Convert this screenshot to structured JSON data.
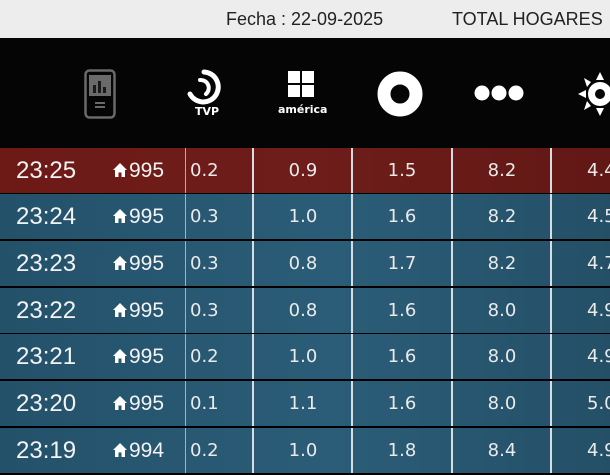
{
  "top_bar": {
    "date_label": "Fecha : 22-09-2025",
    "title": "TOTAL HOGARES"
  },
  "channels": [
    {
      "icon": "device-chart-icon"
    },
    {
      "icon": "tvp-logo-icon",
      "label": "TVP"
    },
    {
      "icon": "america-logo-icon",
      "label": "américa"
    },
    {
      "icon": "circle-ring-logo-icon"
    },
    {
      "icon": "three-dots-logo-icon"
    },
    {
      "icon": "sun-logo-icon"
    }
  ],
  "rows": [
    {
      "time": "23:25",
      "homes": "995",
      "values": [
        "0.2",
        "0.9",
        "1.5",
        "8.2",
        "4.4"
      ],
      "highlight": true
    },
    {
      "time": "23:24",
      "homes": "995",
      "values": [
        "0.3",
        "1.0",
        "1.6",
        "8.2",
        "4.5"
      ]
    },
    {
      "time": "23:23",
      "homes": "995",
      "values": [
        "0.3",
        "0.8",
        "1.7",
        "8.2",
        "4.7"
      ]
    },
    {
      "time": "23:22",
      "homes": "995",
      "values": [
        "0.3",
        "0.8",
        "1.6",
        "8.0",
        "4.9"
      ]
    },
    {
      "time": "23:21",
      "homes": "995",
      "values": [
        "0.2",
        "1.0",
        "1.6",
        "8.0",
        "4.9"
      ]
    },
    {
      "time": "23:20",
      "homes": "995",
      "values": [
        "0.1",
        "1.1",
        "1.6",
        "8.0",
        "5.0"
      ]
    },
    {
      "time": "23:19",
      "homes": "994",
      "values": [
        "0.2",
        "1.0",
        "1.8",
        "8.4",
        "4.9"
      ]
    }
  ],
  "colors": {
    "active_row": "#6d1a17",
    "normal_row": "#2b5d78",
    "header_bg": "#050505",
    "topbar_bg": "#ededed"
  }
}
